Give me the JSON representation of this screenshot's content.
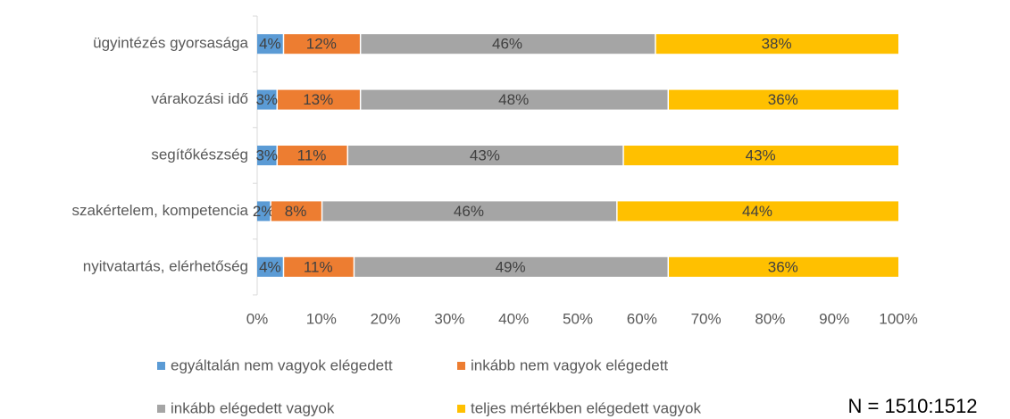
{
  "chart_data": {
    "type": "stacked-bar-horizontal",
    "categories": [
      "ügyintézés gyorsasága",
      "várakozási idő",
      "segítőkészség",
      "szakértelem, kompetencia",
      "nyitvatartás, elérhetőség"
    ],
    "series": [
      {
        "name": "egyáltalán nem vagyok elégedett",
        "color": "#5b9bd5",
        "values": [
          4,
          3,
          3,
          2,
          4
        ],
        "value_labels": [
          "4%",
          "3%",
          "3%",
          "2%",
          "4%"
        ]
      },
      {
        "name": "inkább nem vagyok elégedett",
        "color": "#ed7d31",
        "values": [
          12,
          13,
          11,
          8,
          11
        ],
        "value_labels": [
          "12%",
          "13%",
          "11%",
          "8%",
          "11%"
        ]
      },
      {
        "name": "inkább elégedett vagyok",
        "color": "#a5a5a5",
        "values": [
          46,
          48,
          43,
          46,
          49
        ],
        "value_labels": [
          "46%",
          "48%",
          "43%",
          "46%",
          "49%"
        ]
      },
      {
        "name": "teljes mértékben elégedett vagyok",
        "color": "#ffc000",
        "values": [
          38,
          36,
          43,
          44,
          36
        ],
        "value_labels": [
          "38%",
          "36%",
          "43%",
          "44%",
          "36%"
        ]
      }
    ],
    "xlim": [
      0,
      100
    ],
    "xticks": [
      {
        "value": 0,
        "label": "0%"
      },
      {
        "value": 10,
        "label": "10%"
      },
      {
        "value": 20,
        "label": "20%"
      },
      {
        "value": 30,
        "label": "30%"
      },
      {
        "value": 40,
        "label": "40%"
      },
      {
        "value": 50,
        "label": "50%"
      },
      {
        "value": 60,
        "label": "60%"
      },
      {
        "value": 70,
        "label": "70%"
      },
      {
        "value": 80,
        "label": "80%"
      },
      {
        "value": 90,
        "label": "90%"
      },
      {
        "value": 100,
        "label": "100%"
      }
    ],
    "legend": "bottom",
    "annotation": "N = 1510:1512"
  }
}
